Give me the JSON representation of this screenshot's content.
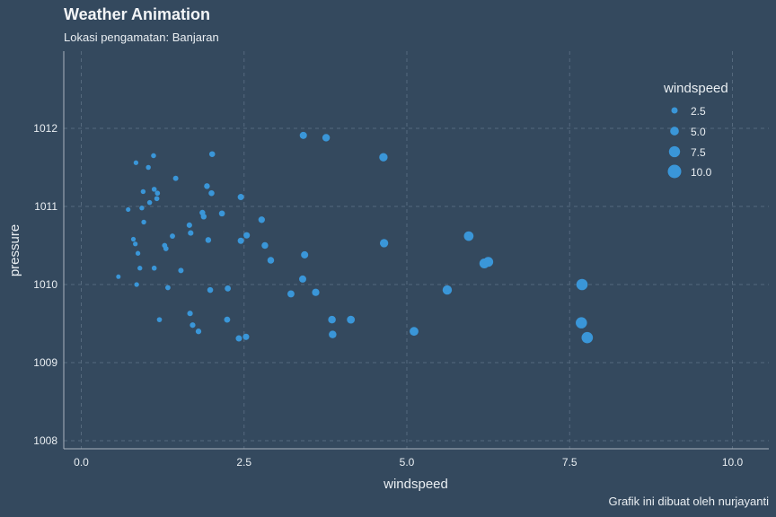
{
  "chart_data": {
    "type": "scatter",
    "title": "Weather Animation",
    "subtitle": "Lokasi pengamatan: Banjaran",
    "caption": "Grafik ini dibuat oleh nurjayanti",
    "xlabel": "windspeed",
    "ylabel": "pressure",
    "xlim": [
      -0.3,
      10.6
    ],
    "ylim": [
      1007.9,
      1013.0
    ],
    "x_ticks": [
      0,
      2.5,
      5,
      7.5,
      10
    ],
    "x_tick_labels": [
      "0.0",
      "2.5",
      "5.0",
      "7.5",
      "10.0"
    ],
    "y_ticks": [
      1008,
      1009,
      1010,
      1011,
      1012
    ],
    "y_tick_labels": [
      "1008",
      "1009",
      "1010",
      "1011",
      "1012"
    ],
    "grid": true,
    "point_color": "#3a96d8",
    "legend": {
      "title": "windspeed",
      "placement": "top-right",
      "entries": [
        {
          "label": "2.5",
          "value": 2.5
        },
        {
          "label": "5.0",
          "value": 5.0
        },
        {
          "label": "7.5",
          "value": 7.5
        },
        {
          "label": "10.0",
          "value": 10.0
        }
      ]
    },
    "points": [
      {
        "x": 0.57,
        "y": 1010.1
      },
      {
        "x": 0.72,
        "y": 1010.96
      },
      {
        "x": 0.8,
        "y": 1010.58
      },
      {
        "x": 0.83,
        "y": 1010.52
      },
      {
        "x": 0.84,
        "y": 1011.56
      },
      {
        "x": 0.85,
        "y": 1010.0
      },
      {
        "x": 0.87,
        "y": 1010.4
      },
      {
        "x": 0.9,
        "y": 1010.21
      },
      {
        "x": 0.93,
        "y": 1010.98
      },
      {
        "x": 0.95,
        "y": 1011.19
      },
      {
        "x": 0.96,
        "y": 1010.8
      },
      {
        "x": 1.03,
        "y": 1011.5
      },
      {
        "x": 1.05,
        "y": 1011.05
      },
      {
        "x": 1.11,
        "y": 1011.65
      },
      {
        "x": 1.12,
        "y": 1011.22
      },
      {
        "x": 1.12,
        "y": 1010.21
      },
      {
        "x": 1.16,
        "y": 1011.1
      },
      {
        "x": 1.17,
        "y": 1011.17
      },
      {
        "x": 1.2,
        "y": 1009.55
      },
      {
        "x": 1.28,
        "y": 1010.5
      },
      {
        "x": 1.3,
        "y": 1010.46
      },
      {
        "x": 1.33,
        "y": 1009.96
      },
      {
        "x": 1.4,
        "y": 1010.62
      },
      {
        "x": 1.45,
        "y": 1011.36
      },
      {
        "x": 1.53,
        "y": 1010.18
      },
      {
        "x": 1.66,
        "y": 1010.76
      },
      {
        "x": 1.67,
        "y": 1009.63
      },
      {
        "x": 1.68,
        "y": 1010.66
      },
      {
        "x": 1.71,
        "y": 1009.48
      },
      {
        "x": 1.8,
        "y": 1009.4
      },
      {
        "x": 1.86,
        "y": 1010.92
      },
      {
        "x": 1.88,
        "y": 1010.87
      },
      {
        "x": 1.93,
        "y": 1011.26
      },
      {
        "x": 1.95,
        "y": 1010.57
      },
      {
        "x": 1.98,
        "y": 1009.93
      },
      {
        "x": 2.0,
        "y": 1011.17
      },
      {
        "x": 2.01,
        "y": 1011.67
      },
      {
        "x": 2.16,
        "y": 1010.91
      },
      {
        "x": 2.25,
        "y": 1009.95
      },
      {
        "x": 2.24,
        "y": 1009.55
      },
      {
        "x": 2.42,
        "y": 1009.31
      },
      {
        "x": 2.45,
        "y": 1010.56
      },
      {
        "x": 2.45,
        "y": 1011.12
      },
      {
        "x": 2.54,
        "y": 1010.63
      },
      {
        "x": 2.53,
        "y": 1009.33
      },
      {
        "x": 2.77,
        "y": 1010.83
      },
      {
        "x": 2.82,
        "y": 1010.5
      },
      {
        "x": 2.91,
        "y": 1010.31
      },
      {
        "x": 3.22,
        "y": 1009.88
      },
      {
        "x": 3.4,
        "y": 1010.07
      },
      {
        "x": 3.41,
        "y": 1011.91
      },
      {
        "x": 3.43,
        "y": 1010.38
      },
      {
        "x": 3.6,
        "y": 1009.9
      },
      {
        "x": 3.76,
        "y": 1011.88
      },
      {
        "x": 3.85,
        "y": 1009.55
      },
      {
        "x": 3.86,
        "y": 1009.36
      },
      {
        "x": 4.14,
        "y": 1009.55
      },
      {
        "x": 4.64,
        "y": 1011.63
      },
      {
        "x": 4.65,
        "y": 1010.53
      },
      {
        "x": 5.11,
        "y": 1009.4
      },
      {
        "x": 5.62,
        "y": 1009.93
      },
      {
        "x": 5.95,
        "y": 1010.62
      },
      {
        "x": 6.19,
        "y": 1010.27
      },
      {
        "x": 6.25,
        "y": 1010.29
      },
      {
        "x": 7.69,
        "y": 1010.0
      },
      {
        "x": 7.68,
        "y": 1009.51
      },
      {
        "x": 7.77,
        "y": 1009.32
      }
    ]
  }
}
